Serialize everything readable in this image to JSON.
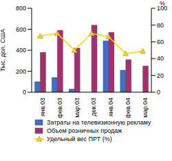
{
  "chart_data": {
    "type": "bar",
    "categories": [
      "янв.03",
      "фев.03",
      "мар.03",
      "дек.03",
      "янв.04",
      "фев.04",
      "мар.04"
    ],
    "series": [
      {
        "name": "Затраты на телевизионную рекламу",
        "color": "#3f6fc4",
        "values": [
          100,
          140,
          30,
          null,
          490,
          210,
          null
        ]
      },
      {
        "name": "Объем розничных продаж",
        "color": "#a3306f",
        "values": [
          380,
          590,
          420,
          640,
          570,
          310,
          250
        ]
      },
      {
        "name": "Удельный вес ПРТ (%)",
        "color": "#ffd200",
        "type": "line",
        "marker": "triangle",
        "axis": "y2",
        "values": [
          67,
          70,
          50,
          70,
          66,
          46,
          49
        ]
      }
    ],
    "y_label": "Тыс. дол. США",
    "y2_label": "%",
    "ylim": [
      0,
      800
    ],
    "yticks": [
      0,
      200,
      400,
      600,
      800
    ],
    "y2lim": [
      0,
      100
    ],
    "y2ticks": [
      0,
      20,
      40,
      60,
      80,
      100
    ],
    "legend": "bottom",
    "grid": false
  }
}
